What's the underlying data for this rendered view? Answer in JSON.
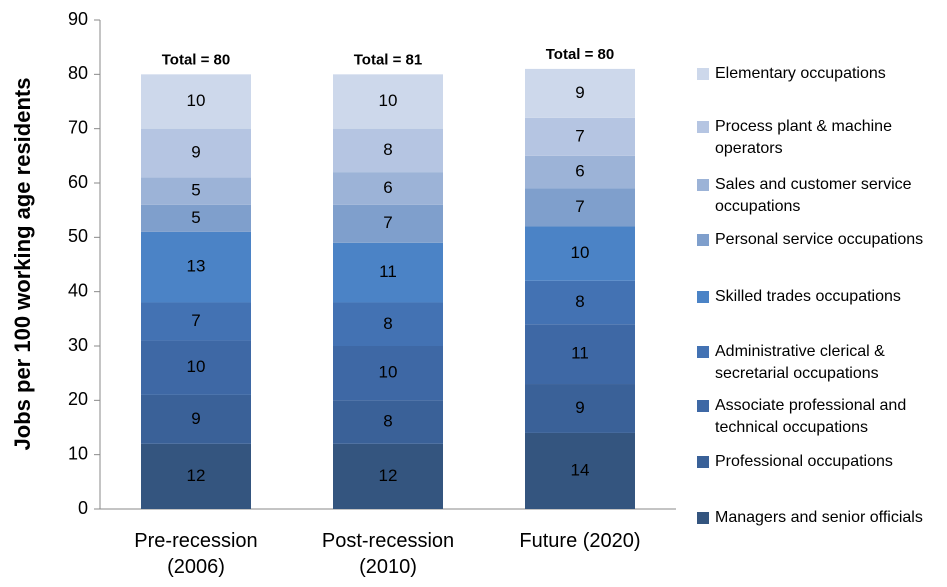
{
  "chart_data": {
    "type": "stacked_bar",
    "y_label": "Jobs per 100 working age residents",
    "categories": [
      "Pre-recession (2006)",
      "Post-recession (2010)",
      "Future (2020)"
    ],
    "totals": [
      "Total = 80",
      "Total = 81",
      "Total = 80"
    ],
    "series": [
      {
        "name": "Managers and senior officials",
        "color": "#34557f",
        "values": [
          12,
          12,
          14
        ]
      },
      {
        "name": "Professional occupations",
        "color": "#3a6198",
        "values": [
          9,
          8,
          9
        ]
      },
      {
        "name": "Associate professional and technical occupations",
        "color": "#3e68a5",
        "values": [
          10,
          10,
          11
        ]
      },
      {
        "name": "Administrative clerical & secretarial occupations",
        "color": "#4372b3",
        "values": [
          7,
          8,
          8
        ]
      },
      {
        "name": "Skilled trades occupations",
        "color": "#4b83c6",
        "values": [
          13,
          11,
          10
        ]
      },
      {
        "name": "Personal service occupations",
        "color": "#7f9fcc",
        "values": [
          5,
          7,
          7
        ]
      },
      {
        "name": "Sales and customer service occupations",
        "color": "#9cb3d7",
        "values": [
          5,
          6,
          6
        ]
      },
      {
        "name": "Process plant & machine operators",
        "color": "#b5c5e2",
        "values": [
          9,
          8,
          7
        ]
      },
      {
        "name": "Elementary occupations",
        "color": "#cdd8eb",
        "values": [
          10,
          10,
          9
        ]
      }
    ],
    "ylim": [
      0,
      90
    ],
    "yticks": [
      0,
      10,
      20,
      30,
      40,
      50,
      60,
      70,
      80,
      90
    ],
    "grid": false
  }
}
